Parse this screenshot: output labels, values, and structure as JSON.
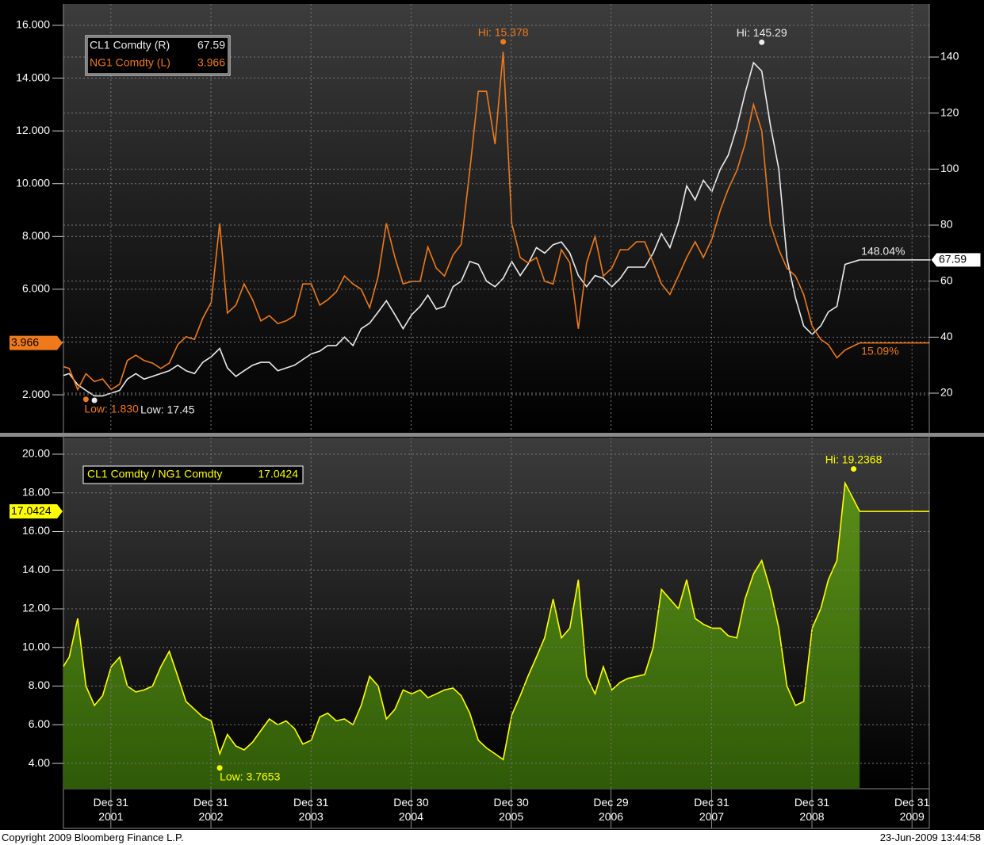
{
  "chart_data": [
    {
      "type": "line",
      "x": [
        "2001-07",
        "2001-08",
        "2001-09",
        "2001-10",
        "2001-11",
        "2001-12",
        "2002-01",
        "2002-02",
        "2002-03",
        "2002-04",
        "2002-05",
        "2002-06",
        "2002-07",
        "2002-08",
        "2002-09",
        "2002-10",
        "2002-11",
        "2002-12",
        "2003-01",
        "2003-02",
        "2003-03",
        "2003-04",
        "2003-05",
        "2003-06",
        "2003-07",
        "2003-08",
        "2003-09",
        "2003-10",
        "2003-11",
        "2003-12",
        "2004-01",
        "2004-02",
        "2004-03",
        "2004-04",
        "2004-05",
        "2004-06",
        "2004-07",
        "2004-08",
        "2004-09",
        "2004-10",
        "2004-11",
        "2004-12",
        "2005-01",
        "2005-02",
        "2005-03",
        "2005-04",
        "2005-05",
        "2005-06",
        "2005-07",
        "2005-08",
        "2005-09",
        "2005-10",
        "2005-11",
        "2005-12",
        "2006-01",
        "2006-02",
        "2006-03",
        "2006-04",
        "2006-05",
        "2006-06",
        "2006-07",
        "2006-08",
        "2006-09",
        "2006-10",
        "2006-11",
        "2006-12",
        "2007-01",
        "2007-02",
        "2007-03",
        "2007-04",
        "2007-05",
        "2007-06",
        "2007-07",
        "2007-08",
        "2007-09",
        "2007-10",
        "2007-11",
        "2007-12",
        "2008-01",
        "2008-02",
        "2008-03",
        "2008-04",
        "2008-05",
        "2008-06",
        "2008-07",
        "2008-08",
        "2008-09",
        "2008-10",
        "2008-11",
        "2008-12",
        "2009-01",
        "2009-02",
        "2009-03",
        "2009-04",
        "2009-05",
        "2009-06-23"
      ],
      "xlim": [
        "2001-07-11",
        "2010-03-04"
      ],
      "ylim": [
        0.59,
        16.81
      ],
      "yticks": [
        {
          "value": 2,
          "label": "2.000"
        },
        {
          "value": 4,
          "label": "4.000"
        },
        {
          "value": 6,
          "label": "6.000"
        },
        {
          "value": 8,
          "label": "8.000"
        },
        {
          "value": 10,
          "label": "10.000"
        },
        {
          "value": 12,
          "label": "12.000"
        },
        {
          "value": 14,
          "label": "14.000"
        },
        {
          "value": 16,
          "label": "16.000"
        }
      ],
      "y2lim": [
        6.13,
        158.96
      ],
      "y2ticks": [
        20,
        40,
        60,
        80,
        100,
        120,
        140
      ],
      "grid": true,
      "series": [
        {
          "name": "CL1 Comdty (R)",
          "color": "#ececec",
          "axis": "y2",
          "change_label": "148.04%",
          "values": [
            26,
            27,
            23,
            21,
            19,
            19,
            20,
            21,
            25,
            27,
            25,
            26,
            27,
            28,
            30,
            28,
            27,
            31,
            33,
            36,
            29,
            26,
            28,
            30,
            31,
            31,
            28,
            29,
            30,
            32,
            34,
            35,
            37,
            37,
            40,
            37,
            43,
            45,
            49,
            53,
            48,
            43,
            48,
            51,
            55,
            50,
            51,
            58,
            60,
            67,
            66,
            60,
            58,
            61,
            67,
            62,
            66,
            72,
            70,
            73,
            74,
            70,
            62,
            58,
            62,
            61,
            58,
            61,
            65,
            65,
            65,
            70,
            77,
            72,
            81,
            94,
            89,
            96,
            92,
            100,
            105,
            115,
            127,
            138,
            135,
            116,
            100,
            68,
            54,
            44,
            41,
            44,
            49,
            51,
            66,
            67.59
          ]
        },
        {
          "name": "NG1 Comdty (L)",
          "color": "#ee7a1c",
          "change_label": "15.09%",
          "values": [
            3.1,
            3.0,
            2.2,
            2.8,
            2.5,
            2.6,
            2.2,
            2.4,
            3.3,
            3.5,
            3.3,
            3.2,
            3.0,
            3.2,
            3.9,
            4.2,
            4.1,
            4.9,
            5.5,
            8.5,
            5.1,
            5.4,
            6.2,
            5.6,
            4.8,
            5.0,
            4.7,
            4.8,
            5.0,
            6.2,
            6.2,
            5.4,
            5.6,
            5.9,
            6.5,
            6.2,
            6.0,
            5.3,
            6.5,
            8.5,
            7.2,
            6.2,
            6.3,
            6.3,
            7.6,
            6.8,
            6.5,
            7.3,
            7.7,
            10.5,
            13.5,
            13.5,
            11.5,
            15.0,
            8.5,
            7.2,
            7.0,
            7.2,
            6.3,
            6.2,
            7.5,
            7.0,
            4.5,
            7.0,
            8.0,
            6.5,
            6.8,
            7.5,
            7.5,
            7.8,
            7.8,
            7.0,
            6.2,
            5.8,
            6.5,
            7.2,
            7.8,
            7.2,
            7.9,
            9.0,
            9.8,
            10.5,
            11.5,
            13.0,
            12.0,
            8.5,
            7.5,
            6.8,
            6.5,
            5.8,
            4.6,
            4.1,
            3.9,
            3.4,
            3.7,
            3.966
          ]
        }
      ],
      "annotations": [
        {
          "text": "Hi: 15.378",
          "x": "2005-12",
          "value": 15.378,
          "kind": "hi"
        },
        {
          "text": "Low: 1.830",
          "x": "2001-10",
          "value": 1.83,
          "kind": "low"
        },
        {
          "text": "Hi: 145.29",
          "x": "2008-07",
          "value": 145.29,
          "kind": "hi",
          "axis": "y2"
        },
        {
          "text": "Low: 17.45",
          "x": "2001-11",
          "value": 17.45,
          "kind": "low",
          "axis": "y2"
        }
      ]
    },
    {
      "type": "area",
      "x": [
        "2001-07",
        "2001-08",
        "2001-09",
        "2001-10",
        "2001-11",
        "2001-12",
        "2002-01",
        "2002-02",
        "2002-03",
        "2002-04",
        "2002-05",
        "2002-06",
        "2002-07",
        "2002-08",
        "2002-09",
        "2002-10",
        "2002-11",
        "2002-12",
        "2003-01",
        "2003-02",
        "2003-03",
        "2003-04",
        "2003-05",
        "2003-06",
        "2003-07",
        "2003-08",
        "2003-09",
        "2003-10",
        "2003-11",
        "2003-12",
        "2004-01",
        "2004-02",
        "2004-03",
        "2004-04",
        "2004-05",
        "2004-06",
        "2004-07",
        "2004-08",
        "2004-09",
        "2004-10",
        "2004-11",
        "2004-12",
        "2005-01",
        "2005-02",
        "2005-03",
        "2005-04",
        "2005-05",
        "2005-06",
        "2005-07",
        "2005-08",
        "2005-09",
        "2005-10",
        "2005-11",
        "2005-12",
        "2006-01",
        "2006-02",
        "2006-03",
        "2006-04",
        "2006-05",
        "2006-06",
        "2006-07",
        "2006-08",
        "2006-09",
        "2006-10",
        "2006-11",
        "2006-12",
        "2007-01",
        "2007-02",
        "2007-03",
        "2007-04",
        "2007-05",
        "2007-06",
        "2007-07",
        "2007-08",
        "2007-09",
        "2007-10",
        "2007-11",
        "2007-12",
        "2008-01",
        "2008-02",
        "2008-03",
        "2008-04",
        "2008-05",
        "2008-06",
        "2008-07",
        "2008-08",
        "2008-09",
        "2008-10",
        "2008-11",
        "2008-12",
        "2009-01",
        "2009-02",
        "2009-03",
        "2009-04",
        "2009-05",
        "2009-06-23"
      ],
      "xlim": [
        "2001-07-11",
        "2010-03-04"
      ],
      "xticks": [
        {
          "value": "2001-12-31",
          "label": "Dec 31\n2001"
        },
        {
          "value": "2002-12-31",
          "label": "Dec 31\n2002"
        },
        {
          "value": "2003-12-31",
          "label": "Dec 31\n2003"
        },
        {
          "value": "2004-12-30",
          "label": "Dec 30\n2004"
        },
        {
          "value": "2005-12-30",
          "label": "Dec 30\n2005"
        },
        {
          "value": "2006-12-29",
          "label": "Dec 29\n2006"
        },
        {
          "value": "2007-12-31",
          "label": "Dec 31\n2007"
        },
        {
          "value": "2008-12-31",
          "label": "Dec 31\n2008"
        },
        {
          "value": "2009-12-31",
          "label": "Dec 31\n2009"
        }
      ],
      "ylim": [
        2.69,
        20.86
      ],
      "yticks": [
        {
          "value": 4,
          "label": "4.00"
        },
        {
          "value": 6,
          "label": "6.00"
        },
        {
          "value": 8,
          "label": "8.00"
        },
        {
          "value": 10,
          "label": "10.00"
        },
        {
          "value": 12,
          "label": "12.00"
        },
        {
          "value": 14,
          "label": "14.00"
        },
        {
          "value": 16,
          "label": "16.00"
        },
        {
          "value": 18,
          "label": "18.00"
        },
        {
          "value": 20,
          "label": "20.00"
        }
      ],
      "grid": true,
      "series": [
        {
          "name": "CL1 Comdty / NG1 Comdty",
          "color": "#ffff00",
          "fill": "#4a7d12",
          "values": [
            8.8,
            9.5,
            11.5,
            8,
            7,
            7.5,
            9.0,
            9.5,
            8.0,
            7.7,
            7.8,
            8.0,
            9.0,
            9.8,
            8.5,
            7.2,
            6.8,
            6.4,
            6.2,
            4.5,
            5.5,
            4.9,
            4.7,
            5.1,
            5.7,
            6.3,
            6.0,
            6.2,
            5.8,
            5.0,
            5.2,
            6.4,
            6.6,
            6.2,
            6.3,
            6.0,
            7.0,
            8.5,
            8.0,
            6.3,
            6.8,
            7.8,
            7.6,
            7.8,
            7.4,
            7.6,
            7.8,
            7.9,
            7.5,
            6.6,
            5.2,
            4.8,
            4.5,
            4.2,
            6.5,
            7.5,
            8.5,
            9.5,
            10.5,
            12.5,
            10.5,
            11.0,
            13.5,
            8.5,
            7.6,
            9.0,
            7.8,
            8.2,
            8.4,
            8.5,
            8.6,
            10.0,
            13.0,
            12.5,
            12.0,
            13.5,
            11.5,
            11.2,
            11.0,
            11.0,
            10.6,
            10.5,
            12.5,
            13.8,
            14.5,
            13.0,
            11.0,
            8.0,
            7.0,
            7.2,
            11.0,
            12.0,
            13.5,
            14.5,
            18.5,
            17.0424
          ]
        }
      ],
      "annotations": [
        {
          "text": "Hi: 19.2368",
          "x": "2009-06",
          "value": 19.2368,
          "kind": "hi"
        },
        {
          "text": "Low: 3.7653",
          "x": "2003-02",
          "value": 3.7653,
          "kind": "low"
        }
      ]
    }
  ],
  "footer": {
    "left": "Copyright 2009 Bloomberg Finance L.P.",
    "right": "23-Jun-2009 13:44:58"
  }
}
